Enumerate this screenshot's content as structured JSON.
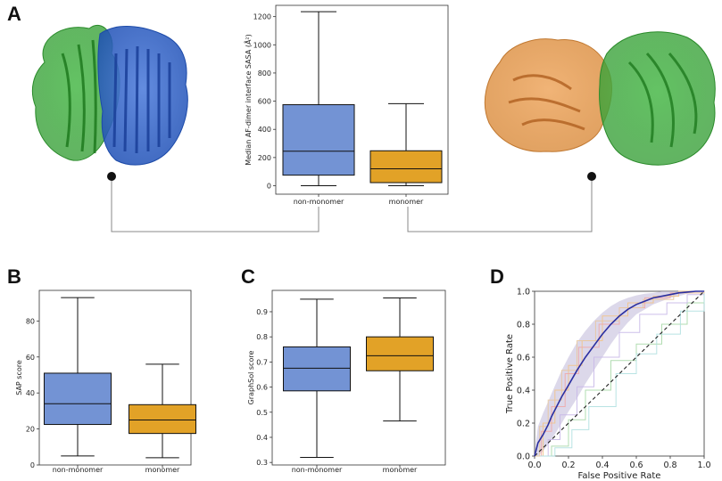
{
  "panel_labels": [
    "A",
    "B",
    "C",
    "D"
  ],
  "colors": {
    "non_monomer": "#7393d4",
    "monomer": "#e2a227",
    "protein_green": "#3fae3f",
    "protein_blue": "#2e62c8",
    "protein_orange": "#d98a3a",
    "roc_mean": "#2b2fa0",
    "roc_band": "#bfb8d8"
  },
  "chart_data": [
    {
      "id": "A",
      "type": "box",
      "ylabel": "Median AF-dimer interface SASA (Å²)",
      "categories": [
        "non-monomer",
        "monomer"
      ],
      "ylim": [
        -60,
        1280
      ],
      "yticks": [
        0,
        200,
        400,
        600,
        800,
        1000,
        1200
      ],
      "boxes": [
        {
          "name": "non-monomer",
          "min": 0,
          "q1": 75,
          "median": 245,
          "q3": 575,
          "max": 1235
        },
        {
          "name": "monomer",
          "min": 0,
          "q1": 22,
          "median": 120,
          "q3": 248,
          "max": 582
        }
      ]
    },
    {
      "id": "B",
      "type": "box",
      "ylabel": "SAP score",
      "categories": [
        "non-monomer",
        "monomer"
      ],
      "ylim": [
        0,
        97
      ],
      "yticks": [
        0,
        20,
        40,
        60,
        80
      ],
      "boxes": [
        {
          "name": "non-monomer",
          "min": 5,
          "q1": 22.5,
          "median": 34,
          "q3": 51,
          "max": 93
        },
        {
          "name": "monomer",
          "min": 4,
          "q1": 17.5,
          "median": 25,
          "q3": 33.5,
          "max": 56
        }
      ]
    },
    {
      "id": "C",
      "type": "box",
      "ylabel": "GraphSol score",
      "categories": [
        "non-monomer",
        "monomer"
      ],
      "ylim": [
        0.29,
        0.985
      ],
      "yticks": [
        0.3,
        0.4,
        0.5,
        0.6,
        0.7,
        0.8,
        0.9
      ],
      "boxes": [
        {
          "name": "non-monomer",
          "min": 0.32,
          "q1": 0.585,
          "median": 0.675,
          "q3": 0.76,
          "max": 0.95
        },
        {
          "name": "monomer",
          "min": 0.465,
          "q1": 0.665,
          "median": 0.725,
          "q3": 0.8,
          "max": 0.955
        }
      ]
    },
    {
      "id": "D",
      "type": "line",
      "xlabel": "False Positive Rate",
      "ylabel": "True Positive Rate",
      "xlim": [
        0,
        1
      ],
      "ylim": [
        0,
        1
      ],
      "ticks": [
        0.0,
        0.2,
        0.4,
        0.6,
        0.8,
        1.0
      ],
      "tick_labels": [
        "0.0",
        "0.2",
        "0.4",
        "0.6",
        "0.8",
        "1.0"
      ],
      "mean_roc": {
        "x": [
          0,
          0.02,
          0.05,
          0.08,
          0.1,
          0.13,
          0.16,
          0.2,
          0.25,
          0.3,
          0.35,
          0.4,
          0.45,
          0.5,
          0.55,
          0.6,
          0.65,
          0.7,
          0.75,
          0.8,
          0.85,
          0.9,
          0.95,
          1.0
        ],
        "y": [
          0,
          0.08,
          0.13,
          0.19,
          0.24,
          0.3,
          0.36,
          0.43,
          0.52,
          0.6,
          0.67,
          0.74,
          0.8,
          0.85,
          0.89,
          0.92,
          0.94,
          0.96,
          0.97,
          0.98,
          0.99,
          0.995,
          1.0,
          1.0
        ]
      },
      "band_upper": [
        0.02,
        0.18,
        0.26,
        0.33,
        0.38,
        0.45,
        0.52,
        0.6,
        0.69,
        0.76,
        0.82,
        0.87,
        0.91,
        0.94,
        0.96,
        0.975,
        0.985,
        0.99,
        1.0,
        1.0,
        1.0,
        1.0,
        1.0,
        1.0
      ],
      "band_lower": [
        0,
        0.0,
        0.03,
        0.07,
        0.1,
        0.15,
        0.2,
        0.27,
        0.35,
        0.44,
        0.52,
        0.6,
        0.68,
        0.75,
        0.81,
        0.86,
        0.89,
        0.92,
        0.94,
        0.96,
        0.97,
        0.985,
        0.995,
        1.0
      ],
      "folds": [
        {
          "color": "#f2c48a",
          "x": [
            0,
            0.05,
            0.12,
            0.2,
            0.28,
            0.4,
            0.55,
            0.7,
            0.85,
            1.0
          ],
          "y": [
            0,
            0.2,
            0.4,
            0.55,
            0.7,
            0.85,
            0.93,
            0.97,
            1.0,
            1.0
          ]
        },
        {
          "color": "#a8d8a8",
          "x": [
            0,
            0.1,
            0.2,
            0.3,
            0.45,
            0.6,
            0.75,
            0.9,
            1.0
          ],
          "y": [
            0,
            0.06,
            0.22,
            0.4,
            0.58,
            0.68,
            0.8,
            0.93,
            1.0
          ]
        },
        {
          "color": "#f0a8a8",
          "x": [
            0,
            0.04,
            0.1,
            0.18,
            0.26,
            0.38,
            0.5,
            0.65,
            0.8,
            1.0
          ],
          "y": [
            0,
            0.15,
            0.3,
            0.5,
            0.66,
            0.8,
            0.9,
            0.96,
            0.99,
            1.0
          ]
        },
        {
          "color": "#c8b8e8",
          "x": [
            0,
            0.08,
            0.15,
            0.25,
            0.35,
            0.5,
            0.62,
            0.78,
            0.9,
            1.0
          ],
          "y": [
            0,
            0.1,
            0.25,
            0.42,
            0.6,
            0.75,
            0.86,
            0.93,
            0.98,
            1.0
          ]
        },
        {
          "color": "#b0e0e0",
          "x": [
            0,
            0.12,
            0.22,
            0.32,
            0.48,
            0.6,
            0.72,
            0.86,
            1.0
          ],
          "y": [
            0,
            0.05,
            0.16,
            0.3,
            0.5,
            0.62,
            0.74,
            0.88,
            1.0
          ]
        },
        {
          "color": "#e8c8a0",
          "x": [
            0,
            0.03,
            0.08,
            0.16,
            0.25,
            0.36,
            0.5,
            0.64,
            0.82,
            1.0
          ],
          "y": [
            0,
            0.18,
            0.34,
            0.52,
            0.7,
            0.82,
            0.9,
            0.95,
            0.99,
            1.0
          ]
        }
      ]
    }
  ]
}
